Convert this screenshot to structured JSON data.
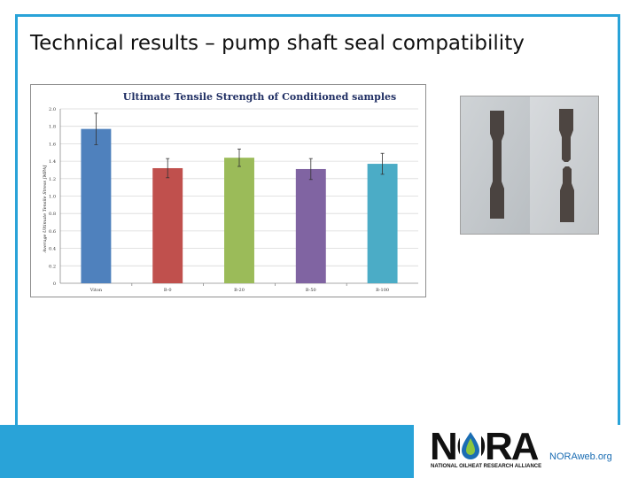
{
  "slide": {
    "title": "Technical results – pump shaft seal compatibility"
  },
  "chart_data": {
    "type": "bar",
    "title": "Ultimate Tensile Strength of Conditioned samples",
    "ylabel": "Average Ultimate Tensile Stress [MPA]",
    "xlabel": "",
    "categories": [
      "Viton",
      "B-0",
      "B-20",
      "B-50",
      "B-100"
    ],
    "values": [
      1.77,
      1.32,
      1.44,
      1.31,
      1.37
    ],
    "error_bars": [
      0.18,
      0.11,
      0.1,
      0.12,
      0.12
    ],
    "bar_colors": [
      "#4f81bd",
      "#c0504d",
      "#9bbb59",
      "#8064a2",
      "#4bacc6"
    ],
    "ylim": [
      0,
      2.0
    ],
    "yticks": [
      {
        "value": 0,
        "label": "0"
      },
      {
        "value": 0.2,
        "label": "0.2"
      },
      {
        "value": 0.4,
        "label": "0.4"
      },
      {
        "value": 0.6,
        "label": "0.6"
      },
      {
        "value": 0.8,
        "label": "0.8"
      },
      {
        "value": 1.0,
        "label": "1.0"
      },
      {
        "value": 1.2,
        "label": "1.2"
      },
      {
        "value": 1.4,
        "label": "1.4"
      },
      {
        "value": 1.6,
        "label": "1.6"
      },
      {
        "value": 1.8,
        "label": "1.8"
      },
      {
        "value": 2.0,
        "label": "2.0"
      }
    ],
    "grid": true,
    "legend": "none"
  },
  "photo": {
    "description_icon": "tensile-specimen-photo-icon"
  },
  "footer": {
    "logo_text": "NORA",
    "site_text": "NORAweb.org",
    "tagline": "NATIONAL OILHEAT RESEARCH ALLIANCE",
    "band_color": "#29a3d8"
  }
}
